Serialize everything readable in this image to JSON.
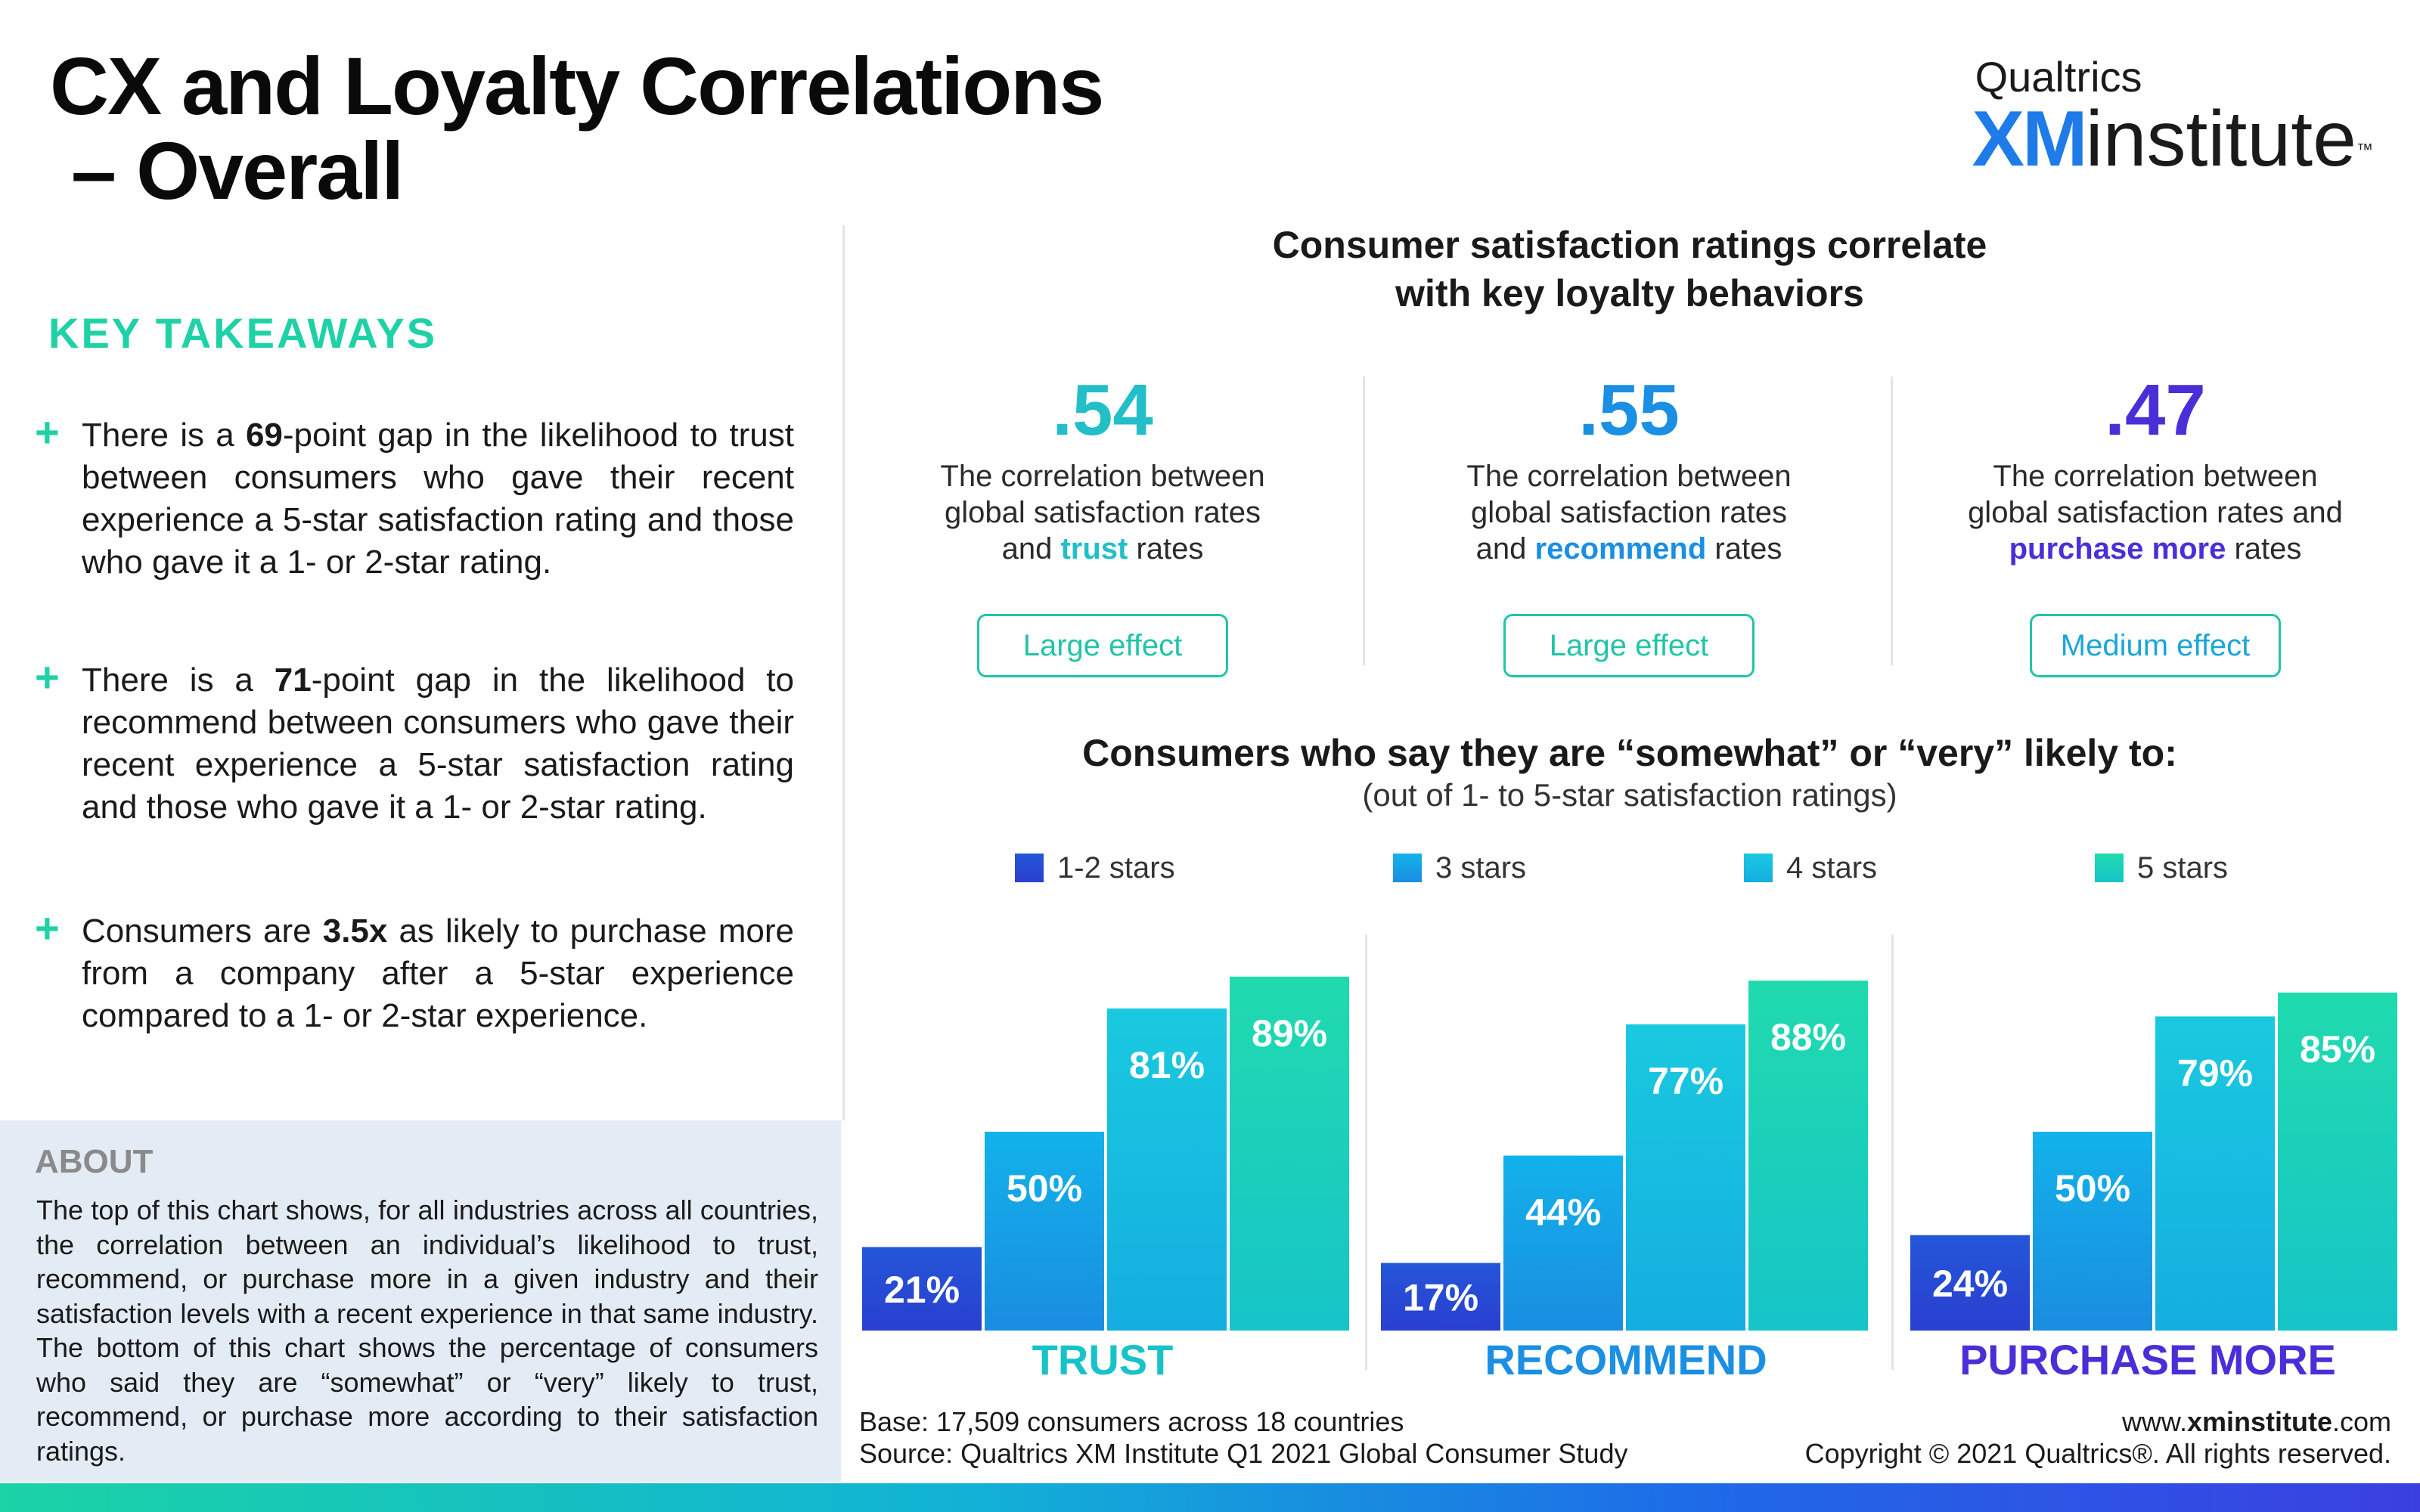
{
  "title": {
    "line1": "CX and Loyalty Correlations",
    "line2": "– Overall"
  },
  "logo": {
    "brand": "Qualtrics",
    "xm": "XM",
    "institute": "institute",
    "tm": "™"
  },
  "key_takeaways": {
    "heading": "KEY TAKEAWAYS",
    "items": [
      {
        "pre": "There is a ",
        "bold": "69",
        "post": "-point gap in the likelihood to trust between consumers who gave their recent experience a 5-star satisfaction rating and those who gave it a 1- or 2-star rating."
      },
      {
        "pre": "There is a ",
        "bold": "71",
        "post": "-point gap in the likelihood to recommend between consumers who gave their recent experience a 5-star satisfaction rating and those who gave it a 1- or 2-star rating."
      },
      {
        "pre": "Consumers are ",
        "bold": "3.5x",
        "post": " as likely to purchase more from a company after a 5-star experience compared to a 1- or 2-star experience."
      }
    ]
  },
  "about": {
    "heading": "ABOUT",
    "text": "The top of this chart shows, for all industries across all countries, the correlation between an individual’s likelihood to trust, recommend, or purchase more in a given industry and their satisfaction levels with a recent experience in that same industry. The bottom of this chart shows the percentage of consumers who said they are “somewhat” or “very” likely to trust, recommend, or purchase more according to their satisfaction ratings."
  },
  "correlations": {
    "heading_line1": "Consumer satisfaction ratings correlate",
    "heading_line2": "with key loyalty behaviors",
    "items": [
      {
        "value": ".54",
        "line1": "The correlation between",
        "line2": "global satisfaction rates",
        "pre": "and ",
        "keyword": "trust",
        "post": " rates",
        "effect": "Large effect",
        "color": "#22bfc8"
      },
      {
        "value": ".55",
        "line1": "The correlation between",
        "line2": "global satisfaction rates",
        "pre": "and ",
        "keyword": "recommend",
        "post": " rates",
        "effect": "Large effect",
        "color": "#1a8fe3"
      },
      {
        "value": ".47",
        "line1": "The correlation between",
        "line2": "global satisfaction rates and",
        "pre": "",
        "keyword": "purchase more",
        "post": " rates",
        "effect": "Medium effect",
        "color": "#4a2fd8"
      }
    ],
    "badge_text_colors": [
      "#22c4a8",
      "#22c4a8",
      "#1aa6d8"
    ]
  },
  "chart_heading": {
    "title": "Consumers who say they are “somewhat” or “very” likely to:",
    "subtitle": "(out of 1- to 5-star satisfaction ratings)"
  },
  "chart_data": {
    "type": "bar",
    "categories": [
      "TRUST",
      "RECOMMEND",
      "PURCHASE MORE"
    ],
    "series": [
      {
        "name": "1-2 stars",
        "values": [
          21,
          17,
          24
        ],
        "labels": [
          "21%",
          "17%",
          "24%"
        ],
        "color_top": "#2456d8",
        "color_bottom": "#2a3fd0"
      },
      {
        "name": "3 stars",
        "values": [
          50,
          44,
          50
        ],
        "labels": [
          "50%",
          "44%",
          "50%"
        ],
        "color_top": "#12b2ea",
        "color_bottom": "#1a8de0"
      },
      {
        "name": "4 stars",
        "values": [
          81,
          77,
          79
        ],
        "labels": [
          "81%",
          "77%",
          "79%"
        ],
        "color_top": "#1ac9df",
        "color_bottom": "#14aee0"
      },
      {
        "name": "5 stars",
        "values": [
          89,
          88,
          85
        ],
        "labels": [
          "89%",
          "88%",
          "85%"
        ],
        "color_top": "#20dbae",
        "color_bottom": "#16c4c8"
      }
    ],
    "category_colors": [
      "#19c2c8",
      "#1a8fe3",
      "#4a2fd8"
    ],
    "ylim": [
      0,
      100
    ],
    "legend_position": "top"
  },
  "footer": {
    "base": "Base: 17,509 consumers across 18 countries",
    "source": "Source: Qualtrics XM Institute Q1 2021 Global Consumer Study",
    "url_pre": "www.",
    "url_bold": "xminstitute",
    "url_post": ".com",
    "copyright": "Copyright © 2021 Qualtrics®. All rights reserved."
  }
}
